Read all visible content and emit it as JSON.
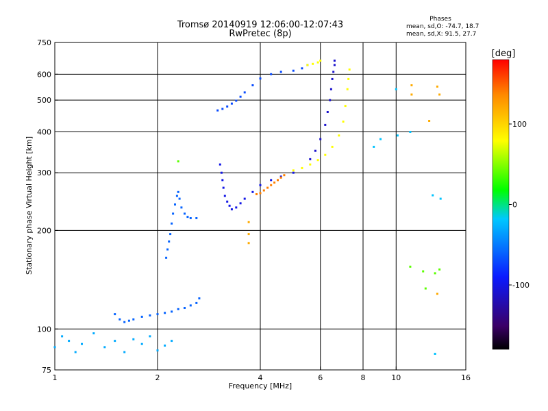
{
  "colors": {
    "background": "#ffffff",
    "grid": "#000000",
    "axes": "#000000"
  },
  "chart_data": {
    "type": "scatter",
    "title": "Tromsø 20140919 12:06:00-12:07:43",
    "subtitle": "RwPretec (8p)",
    "xlabel": "Frequency [MHz]",
    "ylabel": "Stationary phase Virtual Height [km]",
    "x_scale": "log",
    "y_scale": "log",
    "xlim": [
      1,
      16
    ],
    "ylim": [
      75,
      750
    ],
    "x_tick_labels": [
      "1",
      "2",
      "4",
      "6",
      "8",
      "10",
      "16"
    ],
    "x_tick_values": [
      1,
      2,
      4,
      6,
      8,
      10,
      16
    ],
    "y_tick_labels": [
      "75",
      "100",
      "200",
      "300",
      "400",
      "500",
      "600",
      "750"
    ],
    "y_tick_values": [
      75,
      100,
      200,
      300,
      400,
      500,
      600,
      750
    ],
    "grid_x": [
      2,
      4,
      6,
      8,
      10
    ],
    "grid_y": [
      100,
      200,
      300,
      400,
      500,
      600
    ],
    "stats_title": "Phases",
    "stats_line1": "mean, sd,O: -74.7, 18.7",
    "stats_line2": "mean, sd,X:  91.5, 27.7",
    "colorbar": {
      "label": "[deg]",
      "range": [
        -180,
        180
      ],
      "tick_labels": [
        "100",
        "0",
        "-100"
      ],
      "tick_values": [
        100,
        0,
        -100
      ],
      "colormap": "rainbow (black-purple-blue-cyan-green-yellow-red)"
    },
    "series": [
      {
        "phase_deg": -30,
        "x": [
          1.0,
          1.05,
          1.1,
          1.15,
          1.2,
          1.3,
          1.4,
          1.5,
          1.6,
          1.7,
          1.8,
          1.9,
          2.0,
          2.1,
          2.2
        ],
        "y": [
          88,
          95,
          92,
          85,
          90,
          97,
          88,
          92,
          85,
          93,
          90,
          95,
          86,
          89,
          92
        ]
      },
      {
        "phase_deg": -60,
        "x": [
          1.5,
          1.55,
          1.6,
          1.65,
          1.7,
          1.8,
          1.9,
          2.0,
          2.1,
          2.2,
          2.3,
          2.4,
          2.5,
          2.6,
          2.65
        ],
        "y": [
          111,
          107,
          105,
          106,
          107,
          109,
          110,
          111,
          112,
          113,
          115,
          116,
          118,
          120,
          124
        ]
      },
      {
        "phase_deg": -60,
        "x": [
          2.12,
          2.14,
          2.16,
          2.18,
          2.2,
          2.22,
          2.25,
          2.28,
          2.3,
          2.32,
          2.35,
          2.4,
          2.45,
          2.5,
          2.6
        ],
        "y": [
          165,
          175,
          185,
          195,
          210,
          225,
          240,
          255,
          262,
          250,
          235,
          225,
          220,
          218,
          218
        ]
      },
      {
        "phase_deg": -100,
        "x": [
          3.05,
          3.08,
          3.1,
          3.12,
          3.15,
          3.2,
          3.25,
          3.3,
          3.4,
          3.5,
          3.6,
          3.8,
          4.0,
          4.3,
          4.6,
          5.0
        ],
        "y": [
          318,
          300,
          285,
          270,
          255,
          245,
          238,
          232,
          235,
          242,
          250,
          262,
          275,
          285,
          292,
          300
        ]
      },
      {
        "phase_deg": 140,
        "x": [
          3.9,
          4.0,
          4.1,
          4.2,
          4.3,
          4.4,
          4.5,
          4.6,
          4.7
        ],
        "y": [
          258,
          260,
          265,
          270,
          275,
          280,
          285,
          290,
          295
        ]
      },
      {
        "phase_deg": 80,
        "x": [
          5.0,
          5.3,
          5.6,
          5.9,
          6.2,
          6.5,
          6.8,
          7.0,
          7.1,
          7.2,
          7.25,
          7.3
        ],
        "y": [
          305,
          310,
          318,
          328,
          340,
          360,
          390,
          430,
          480,
          540,
          580,
          620
        ]
      },
      {
        "phase_deg": -110,
        "x": [
          5.6,
          5.8,
          6.0,
          6.2,
          6.3,
          6.4,
          6.45,
          6.5,
          6.55,
          6.6,
          6.6
        ],
        "y": [
          330,
          350,
          380,
          420,
          460,
          500,
          540,
          580,
          610,
          640,
          660
        ]
      },
      {
        "phase_deg": -70,
        "x": [
          3.0,
          3.1,
          3.2,
          3.3,
          3.4,
          3.5,
          3.6,
          3.8,
          4.0,
          4.3,
          4.6,
          5.0,
          5.3,
          5.5
        ],
        "y": [
          465,
          470,
          478,
          488,
          498,
          512,
          528,
          555,
          582,
          600,
          610,
          615,
          625,
          640
        ]
      },
      {
        "phase_deg": 80,
        "x": [
          5.5,
          5.7,
          5.9,
          6.0
        ],
        "y": [
          640,
          645,
          652,
          660
        ]
      },
      {
        "phase_deg": 120,
        "x": [
          3.7,
          3.7,
          3.7,
          11.1,
          11.1,
          12.5,
          13.2,
          13.2,
          13.4
        ],
        "y": [
          212,
          195,
          183,
          555,
          520,
          432,
          128,
          550,
          520
        ]
      },
      {
        "phase_deg": -20,
        "x": [
          10.0,
          10.1,
          11.0,
          12.8,
          13.0,
          13.5,
          9.0,
          8.6
        ],
        "y": [
          540,
          390,
          400,
          256,
          84,
          250,
          380,
          360
        ]
      },
      {
        "phase_deg": 40,
        "x": [
          11.0,
          12.0,
          13.0,
          13.4,
          12.2,
          2.3
        ],
        "y": [
          155,
          150,
          148,
          152,
          133,
          325
        ]
      }
    ]
  }
}
